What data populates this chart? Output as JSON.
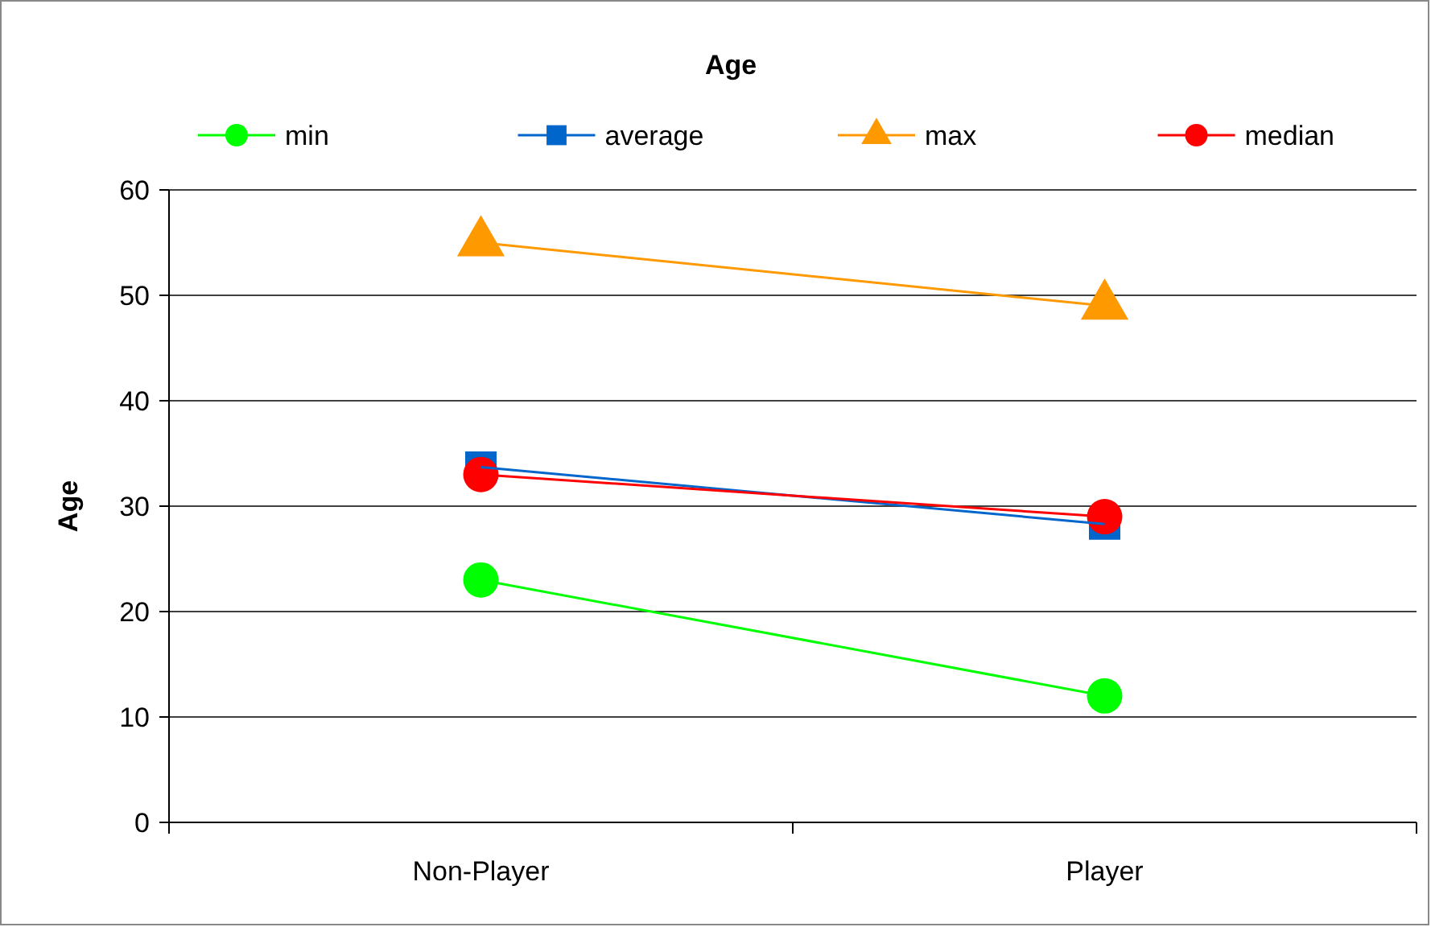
{
  "chart_data": {
    "type": "line",
    "title": "Age",
    "ylabel": "Age",
    "categories": [
      "Non-Player",
      "Player"
    ],
    "series": [
      {
        "name": "min",
        "color": "#00ff00",
        "values": [
          23,
          12
        ],
        "marker": "circle"
      },
      {
        "name": "average",
        "color": "#0066cc",
        "values": [
          33.7,
          28.3
        ],
        "marker": "square"
      },
      {
        "name": "max",
        "color": "#ff9900",
        "values": [
          55,
          49
        ],
        "marker": "triangle"
      },
      {
        "name": "median",
        "color": "#ff0000",
        "values": [
          33,
          29
        ],
        "marker": "circle"
      }
    ],
    "ylim": [
      0,
      60
    ],
    "yticks": [
      0,
      10,
      20,
      30,
      40,
      50,
      60
    ],
    "grid": "y",
    "legend": "top"
  }
}
